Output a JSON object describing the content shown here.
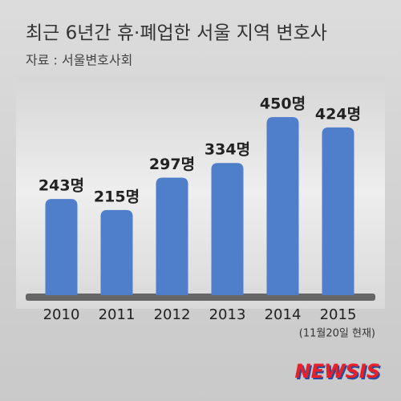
{
  "chart_data": {
    "type": "bar",
    "title": "최근 6년간 휴·폐업한 서울 지역 변호사",
    "subtitle": "자료 : 서울변호사회",
    "categories": [
      "2010",
      "2011",
      "2012",
      "2013",
      "2014",
      "2015"
    ],
    "values": [
      243,
      215,
      297,
      334,
      450,
      424
    ],
    "value_labels": [
      "243명",
      "215명",
      "297명",
      "334명",
      "450명",
      "424명"
    ],
    "color": "#4f7fca",
    "note": "(11월20일 현재)",
    "logo": "NEWSIS"
  }
}
